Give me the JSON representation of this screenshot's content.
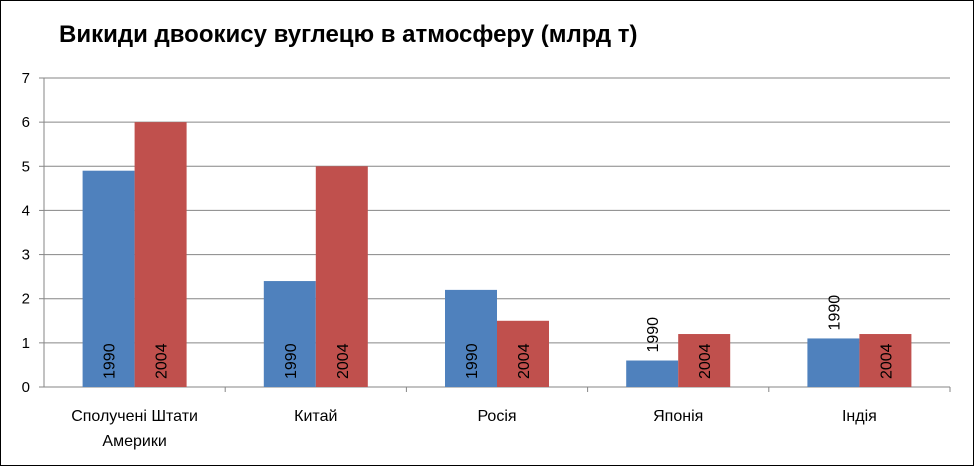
{
  "chart_data": {
    "type": "bar",
    "title": "Викиди двоокису вуглецю в атмосферу (млрд т)",
    "xlabel": "",
    "ylabel": "",
    "ylim": [
      0,
      7
    ],
    "yticks": [
      0,
      1,
      2,
      3,
      4,
      5,
      6,
      7
    ],
    "grid": true,
    "legend": "none",
    "categories": [
      [
        "Сполучені Штати",
        "Америки"
      ],
      [
        "Китай"
      ],
      [
        "Росія"
      ],
      [
        "Японія"
      ],
      [
        "Індія"
      ]
    ],
    "series": [
      {
        "name": "1990",
        "color": "#4f81bd",
        "values": [
          4.9,
          2.4,
          2.2,
          0.6,
          1.1
        ]
      },
      {
        "name": "2004",
        "color": "#c0504d",
        "values": [
          6.0,
          5.0,
          1.5,
          1.2,
          1.2
        ]
      }
    ],
    "data_labels": [
      "1990",
      "2004"
    ]
  }
}
